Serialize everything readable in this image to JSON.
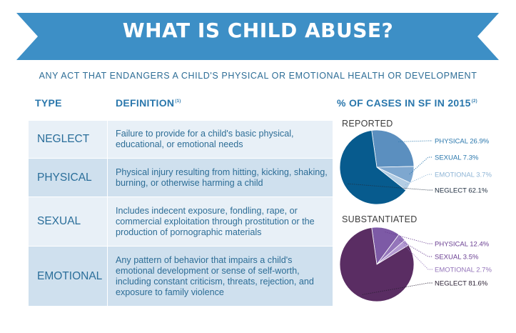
{
  "header": {
    "title": "WHAT IS CHILD ABUSE?",
    "subtitle": "ANY ACT THAT ENDANGERS A CHILD'S PHYSICAL OR EMOTIONAL HEALTH OR DEVELOPMENT"
  },
  "table": {
    "col_type": "TYPE",
    "col_definition": "DEFINITION",
    "col_definition_note": "(1)",
    "rows": [
      {
        "type": "NEGLECT",
        "definition": "Failure to provide for a child's basic physical, educational, or emotional needs"
      },
      {
        "type": "PHYSICAL",
        "definition": "Physical injury resulting from hitting, kicking, shaking, burning, or otherwise harming a child"
      },
      {
        "type": "SEXUAL",
        "definition": "Includes indecent exposure, fondling, rape, or commercial exploitation through prostitution or the production of pornographic materials"
      },
      {
        "type": "EMOTIONAL",
        "definition": "Any pattern of behavior that impairs a child's emotional development or sense of self-worth, including constant criticism, threats, rejection, and exposure to family violence"
      }
    ]
  },
  "charts_header": {
    "title": "% OF CASES IN SF IN 2015",
    "note": "(2)"
  },
  "chart_data": [
    {
      "type": "pie",
      "title": "REPORTED",
      "categories": [
        "PHYSICAL",
        "SEXUAL",
        "EMOTIONAL",
        "NEGLECT"
      ],
      "values": [
        26.9,
        7.3,
        3.7,
        62.1
      ],
      "labels": [
        "PHYSICAL 26.9%",
        "SEXUAL 7.3%",
        "EMOTIONAL 3.7%",
        "NEGLECT 62.1%"
      ],
      "colors": [
        "#5b8fbf",
        "#7ea7cf",
        "#b3cde4",
        "#075b8e"
      ],
      "label_colors": [
        "#2a77ac",
        "#2a77ac",
        "#8fb5d6",
        "#1f2e40"
      ]
    },
    {
      "type": "pie",
      "title": "SUBSTANTIATED",
      "categories": [
        "PHYSICAL",
        "SEXUAL",
        "EMOTIONAL",
        "NEGLECT"
      ],
      "values": [
        12.4,
        3.5,
        2.7,
        81.6
      ],
      "labels": [
        "PHYSICAL 12.4%",
        "SEXUAL 3.5%",
        "EMOTIONAL 2.7%",
        "NEGLECT 81.6%"
      ],
      "colors": [
        "#7d5aa6",
        "#9475ba",
        "#b39ad2",
        "#5a2d63"
      ],
      "label_colors": [
        "#6a3f92",
        "#6a3f92",
        "#9475ba",
        "#2a1f33"
      ]
    }
  ],
  "colors": {
    "banner": "#3d8fc6",
    "banner_text": "#ffffff",
    "heading": "#2a77ac",
    "row_light": "#e8f0f7",
    "row_dark": "#cfe0ee"
  }
}
